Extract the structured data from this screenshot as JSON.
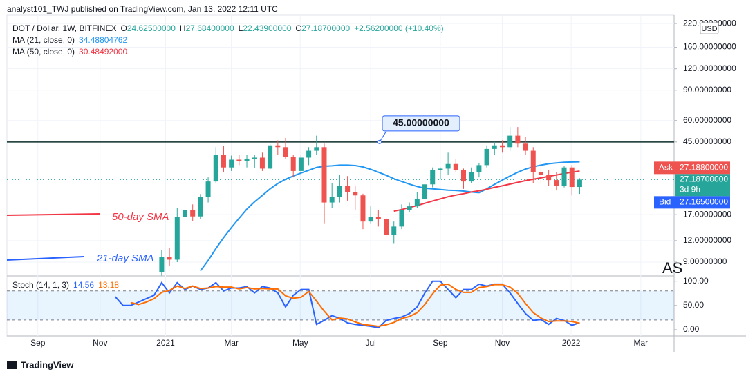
{
  "header": {
    "publisher": "analyst101_TWJ published on TradingView.com, Jan 13, 2022 12:11 UTC"
  },
  "legend": {
    "symbol": "DOT / Dollar, 1W, BITFINEX",
    "ohlc": [
      {
        "key": "O",
        "value": "24.62500000"
      },
      {
        "key": "H",
        "value": "27.68400000"
      },
      {
        "key": "L",
        "value": "22.43900000"
      },
      {
        "key": "C",
        "value": "27.18700000"
      }
    ],
    "change": "+2.56200000 (+10.40%)",
    "ma": [
      "34.48804762",
      "30.48492000"
    ],
    "stoch": [
      "14.56",
      "13.18"
    ]
  },
  "price_axis": {
    "currency": "USD",
    "ask": {
      "label": "Ask",
      "value": "27.18800000"
    },
    "last": {
      "value": "27.18700000",
      "countdown": "3d 9h"
    },
    "bid": {
      "label": "Bid",
      "value": "27.16500000"
    }
  },
  "annotations": {
    "hline": {
      "value": 45,
      "label": "45.00000000"
    },
    "sma50": "50-day SMA",
    "sma21": "21-day SMA",
    "watermark": "AS"
  },
  "footer": {
    "brand": "TradingView"
  },
  "chart_data": [
    {
      "type": "candlestick",
      "log_scale": true,
      "up_color": "#26a69a",
      "down_color": "#ef5350",
      "xlim": [
        -4,
        82.2
      ],
      "ylim": [
        7.48,
        246
      ],
      "yticks": [
        {
          "value": 220,
          "label": "220.00000000"
        },
        {
          "value": 160,
          "label": "160.00000000"
        },
        {
          "value": 120,
          "label": "120.00000000"
        },
        {
          "value": 90,
          "label": "90.00000000"
        },
        {
          "value": 60,
          "label": "60.00000000"
        },
        {
          "value": 45,
          "label": "45.00000000"
        },
        {
          "value": 17,
          "label": "17.00000000"
        },
        {
          "value": 12,
          "label": "12.00000000"
        },
        {
          "value": 9,
          "label": "9.00000000"
        }
      ],
      "last_price": 27.187,
      "x": [
        16,
        17,
        18,
        19,
        20,
        21,
        22,
        23,
        24,
        25,
        26,
        27,
        28,
        29,
        30,
        31,
        32,
        33,
        34,
        35,
        36,
        37,
        38,
        39,
        40,
        41,
        42,
        43,
        44,
        45,
        46,
        47,
        48,
        49,
        50,
        51,
        52,
        53,
        54,
        55,
        56,
        57,
        58,
        59,
        60,
        61,
        62,
        63,
        64,
        65,
        66,
        67,
        68,
        69,
        70
      ],
      "open": [
        7.9,
        9.6,
        9.3,
        16.5,
        18.0,
        16.6,
        21.5,
        26.5,
        38.0,
        32.0,
        35.5,
        34.8,
        36.0,
        36.5,
        31.5,
        43.0,
        42.0,
        37.0,
        30.5,
        36.5,
        40.0,
        42.0,
        20.0,
        21.5,
        25.0,
        23.0,
        22.0,
        15.5,
        16.5,
        16.0,
        13.0,
        14.5,
        18.0,
        19.0,
        21.0,
        25.5,
        31.0,
        31.5,
        33.5,
        31.0,
        26.5,
        30.0,
        33.0,
        41.0,
        43.0,
        42.0,
        49.0,
        44.0,
        40.0,
        30.0,
        29.0,
        27.0,
        25.0,
        32.0,
        24.625
      ],
      "high": [
        10.6,
        10.9,
        18.5,
        19.0,
        19.5,
        22.4,
        28.0,
        42.0,
        42.5,
        37.5,
        38.0,
        37.8,
        38.0,
        39.0,
        44.0,
        46.0,
        47.5,
        38.0,
        38.0,
        42.0,
        49.0,
        44.0,
        26.0,
        29.0,
        28.5,
        25.0,
        22.5,
        19.0,
        18.0,
        16.5,
        15.5,
        19.5,
        20.0,
        23.0,
        27.5,
        32.0,
        32.0,
        39.0,
        36.0,
        31.5,
        32.0,
        34.0,
        43.0,
        45.0,
        46.0,
        55.0,
        55.0,
        48.0,
        42.0,
        35.0,
        31.0,
        30.0,
        32.5,
        33.0,
        27.684
      ],
      "low": [
        7.5,
        8.6,
        9.0,
        15.2,
        15.6,
        16.0,
        20.0,
        26.0,
        30.0,
        30.5,
        33.0,
        32.0,
        31.8,
        30.5,
        31.0,
        38.0,
        36.0,
        28.0,
        29.0,
        33.0,
        38.0,
        15.0,
        18.5,
        20.0,
        20.5,
        18.0,
        14.0,
        15.0,
        14.5,
        12.5,
        11.5,
        14.0,
        17.5,
        18.5,
        20.0,
        24.5,
        27.5,
        29.0,
        30.0,
        24.0,
        26.0,
        28.0,
        32.0,
        38.0,
        39.0,
        40.0,
        42.0,
        38.0,
        26.0,
        26.0,
        25.0,
        23.5,
        24.5,
        22.0,
        22.439
      ],
      "close": [
        9.6,
        9.3,
        16.5,
        18.0,
        16.6,
        21.5,
        26.5,
        38.0,
        32.0,
        35.5,
        34.8,
        36.0,
        36.5,
        31.5,
        43.0,
        42.0,
        37.0,
        30.5,
        36.5,
        40.0,
        42.0,
        20.0,
        21.5,
        25.0,
        23.0,
        22.0,
        15.5,
        16.5,
        16.0,
        13.0,
        14.5,
        18.0,
        19.0,
        21.0,
        25.5,
        31.0,
        31.5,
        33.5,
        31.0,
        26.5,
        30.0,
        33.0,
        41.0,
        43.0,
        42.0,
        49.0,
        44.0,
        40.0,
        30.0,
        29.0,
        27.0,
        25.0,
        32.0,
        24.625,
        27.187
      ],
      "series": [
        {
          "name": "MA (21, close, 0)",
          "color": "#2196f3",
          "values": [
            null,
            null,
            null,
            null,
            null,
            8.0,
            9.2,
            10.8,
            12.5,
            14.3,
            16.2,
            18.3,
            20.2,
            22.0,
            24.0,
            25.8,
            27.3,
            28.5,
            29.7,
            30.8,
            32.0,
            32.5,
            32.7,
            33.0,
            33.0,
            32.8,
            32.2,
            31.2,
            30.0,
            28.8,
            27.5,
            26.5,
            25.6,
            24.8,
            24.2,
            24.0,
            23.8,
            23.6,
            23.5,
            23.3,
            23.0,
            22.8,
            24.0,
            25.5,
            27.0,
            28.5,
            30.0,
            31.3,
            32.3,
            33.0,
            33.6,
            34.0,
            34.3,
            34.4,
            34.48804762
          ]
        },
        {
          "name": "MA (50, close, 0)",
          "color": "#f23645",
          "values": [
            null,
            null,
            null,
            null,
            null,
            null,
            null,
            null,
            null,
            null,
            null,
            null,
            null,
            null,
            null,
            null,
            null,
            null,
            null,
            null,
            null,
            null,
            null,
            null,
            null,
            null,
            null,
            null,
            null,
            null,
            17.8,
            18.2,
            18.7,
            19.2,
            19.8,
            20.4,
            21.0,
            21.6,
            22.1,
            22.5,
            23.0,
            23.4,
            23.9,
            24.5,
            25.0,
            25.6,
            26.2,
            26.8,
            27.3,
            27.8,
            28.4,
            28.9,
            29.5,
            30.0,
            30.48492
          ]
        }
      ]
    },
    {
      "type": "line",
      "name": "Stoch (14, 1, 3)",
      "xlim": [
        -4,
        82.2
      ],
      "ylim": [
        -13,
        111
      ],
      "band": [
        20,
        80
      ],
      "yticks": [
        {
          "value": 100,
          "label": "100.00"
        },
        {
          "value": 50,
          "label": "50.00"
        },
        {
          "value": 0,
          "label": "0.00"
        }
      ],
      "xticks": [
        {
          "value": 0,
          "label": "Sep"
        },
        {
          "value": 8.04,
          "label": "Nov"
        },
        {
          "value": 16.5,
          "label": "2021"
        },
        {
          "value": 25.0,
          "label": "Mar"
        },
        {
          "value": 33.9,
          "label": "May"
        },
        {
          "value": 43.0,
          "label": "Jul"
        },
        {
          "value": 52.0,
          "label": "Sep"
        },
        {
          "value": 60.0,
          "label": "Nov"
        },
        {
          "value": 68.9,
          "label": "2022"
        },
        {
          "value": 77.9,
          "label": "Mar"
        }
      ],
      "x": [
        10,
        11,
        12,
        13,
        14,
        15,
        16,
        17,
        18,
        19,
        20,
        21,
        22,
        23,
        24,
        25,
        26,
        27,
        28,
        29,
        30,
        31,
        32,
        33,
        34,
        35,
        36,
        37,
        38,
        39,
        40,
        41,
        42,
        43,
        44,
        45,
        46,
        47,
        48,
        49,
        50,
        51,
        52,
        53,
        54,
        55,
        56,
        57,
        58,
        59,
        60,
        61,
        62,
        63,
        64,
        65,
        66,
        67,
        68,
        69,
        70
      ],
      "series": [
        {
          "color": "#2962ff",
          "values": [
            68,
            50,
            50,
            57,
            64,
            71,
            97,
            76,
            97,
            83,
            90,
            83,
            86,
            97,
            80,
            86,
            86,
            89,
            76,
            89,
            86,
            76,
            47,
            71,
            83,
            83,
            11,
            19,
            29,
            23,
            14,
            11,
            9,
            7,
            4,
            19,
            23,
            26,
            33,
            47,
            76,
            100,
            100,
            83,
            66,
            83,
            83,
            94,
            90,
            94,
            94,
            76,
            54,
            33,
            19,
            21,
            11,
            23,
            19,
            9,
            14.56
          ]
        },
        {
          "color": "#ff6d00",
          "values": [
            null,
            null,
            56,
            52,
            57,
            64,
            77,
            81,
            90,
            85,
            90,
            85,
            86,
            89,
            88,
            88,
            84,
            87,
            84,
            85,
            84,
            84,
            70,
            65,
            67,
            79,
            59,
            38,
            20,
            24,
            22,
            16,
            11,
            9,
            7,
            10,
            15,
            23,
            27,
            35,
            52,
            74,
            92,
            94,
            83,
            77,
            77,
            87,
            89,
            93,
            93,
            88,
            75,
            54,
            35,
            24,
            17,
            18,
            18,
            17,
            13.18
          ]
        }
      ]
    }
  ]
}
